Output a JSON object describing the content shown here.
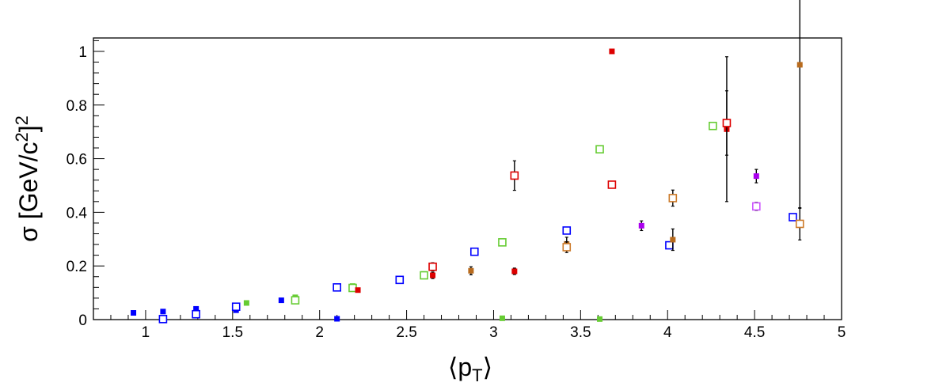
{
  "chart_data": {
    "type": "scatter",
    "title": "",
    "xlabel": "⟨p",
    "xlabel_sub": "T",
    "xlabel_end": "⟩",
    "ylabel": "σ [GeV/c",
    "ylabel_sup1": "2",
    "ylabel_end": "]",
    "ylabel_sup2": "2",
    "xlim": [
      0.7,
      5.0
    ],
    "ylim": [
      0,
      1.05
    ],
    "x_ticks": [
      1,
      1.5,
      2,
      2.5,
      3,
      3.5,
      4,
      4.5,
      5
    ],
    "x_tick_labels": [
      "1",
      "1.5",
      "2",
      "2.5",
      "3",
      "3.5",
      "4",
      "4.5",
      "5"
    ],
    "y_ticks": [
      0,
      0.2,
      0.4,
      0.6,
      0.8,
      1
    ],
    "y_tick_labels": [
      "0",
      "0.2",
      "0.4",
      "0.6",
      "0.8",
      "1"
    ],
    "grid": false,
    "legend": "none",
    "series": [
      {
        "color": "#0000ff",
        "filled": true,
        "points": [
          {
            "x": 0.93,
            "y": 0.025
          },
          {
            "x": 1.1,
            "y": 0.03
          },
          {
            "x": 1.29,
            "y": 0.04
          },
          {
            "x": 1.52,
            "y": 0.035
          },
          {
            "x": 1.78,
            "y": 0.072
          },
          {
            "x": 2.1,
            "y": 0.003
          }
        ]
      },
      {
        "color": "#0000ff",
        "filled": false,
        "points": [
          {
            "x": 1.1,
            "y": 0.002
          },
          {
            "x": 1.29,
            "y": 0.02
          },
          {
            "x": 1.52,
            "y": 0.048
          },
          {
            "x": 2.1,
            "y": 0.12
          },
          {
            "x": 2.46,
            "y": 0.148
          },
          {
            "x": 2.89,
            "y": 0.253
          },
          {
            "x": 3.42,
            "y": 0.332
          },
          {
            "x": 4.01,
            "y": 0.277
          },
          {
            "x": 4.72,
            "y": 0.382
          }
        ]
      },
      {
        "color": "#66cc33",
        "filled": true,
        "points": [
          {
            "x": 1.58,
            "y": 0.062
          },
          {
            "x": 1.86,
            "y": 0.083
          },
          {
            "x": 2.19,
            "y": 0.125
          },
          {
            "x": 2.6,
            "y": 0.17
          },
          {
            "x": 3.05,
            "y": 0.005
          },
          {
            "x": 3.61,
            "y": 0.002
          }
        ]
      },
      {
        "color": "#66cc33",
        "filled": false,
        "points": [
          {
            "x": 1.86,
            "y": 0.072
          },
          {
            "x": 2.19,
            "y": 0.118
          },
          {
            "x": 2.6,
            "y": 0.165
          },
          {
            "x": 3.05,
            "y": 0.288
          },
          {
            "x": 3.61,
            "y": 0.635
          },
          {
            "x": 4.26,
            "y": 0.722
          }
        ]
      },
      {
        "color": "#dd0000",
        "filled": true,
        "points": [
          {
            "x": 2.22,
            "y": 0.11
          },
          {
            "x": 2.65,
            "y": 0.165,
            "err": 0.012
          },
          {
            "x": 3.12,
            "y": 0.18,
            "err": 0.012
          },
          {
            "x": 3.68,
            "y": 1.0
          },
          {
            "x": 4.34,
            "y": 0.71,
            "err": 0.27
          }
        ]
      },
      {
        "color": "#dd0000",
        "filled": false,
        "points": [
          {
            "x": 2.65,
            "y": 0.197,
            "err": 0.015
          },
          {
            "x": 3.12,
            "y": 0.537,
            "err": 0.055
          },
          {
            "x": 3.68,
            "y": 0.503
          },
          {
            "x": 4.34,
            "y": 0.733,
            "err": 0.12
          }
        ]
      },
      {
        "color": "#b86b1e",
        "filled": true,
        "points": [
          {
            "x": 2.87,
            "y": 0.182,
            "err": 0.015
          },
          {
            "x": 3.42,
            "y": 0.282,
            "err": 0.025
          },
          {
            "x": 4.03,
            "y": 0.298,
            "err": 0.04
          },
          {
            "x": 4.76,
            "y": 0.95,
            "err": 0.535
          }
        ]
      },
      {
        "color": "#cc7a29",
        "filled": false,
        "points": [
          {
            "x": 3.42,
            "y": 0.27,
            "err": 0.02
          },
          {
            "x": 4.03,
            "y": 0.453,
            "err": 0.03
          },
          {
            "x": 4.76,
            "y": 0.357,
            "err": 0.06
          }
        ]
      },
      {
        "color": "#aa00ee",
        "filled": true,
        "points": [
          {
            "x": 3.85,
            "y": 0.35,
            "err": 0.018
          },
          {
            "x": 4.51,
            "y": 0.535,
            "err": 0.025
          }
        ]
      },
      {
        "color": "#cc55ff",
        "filled": false,
        "points": [
          {
            "x": 4.51,
            "y": 0.422,
            "err": 0.015
          }
        ]
      }
    ]
  }
}
